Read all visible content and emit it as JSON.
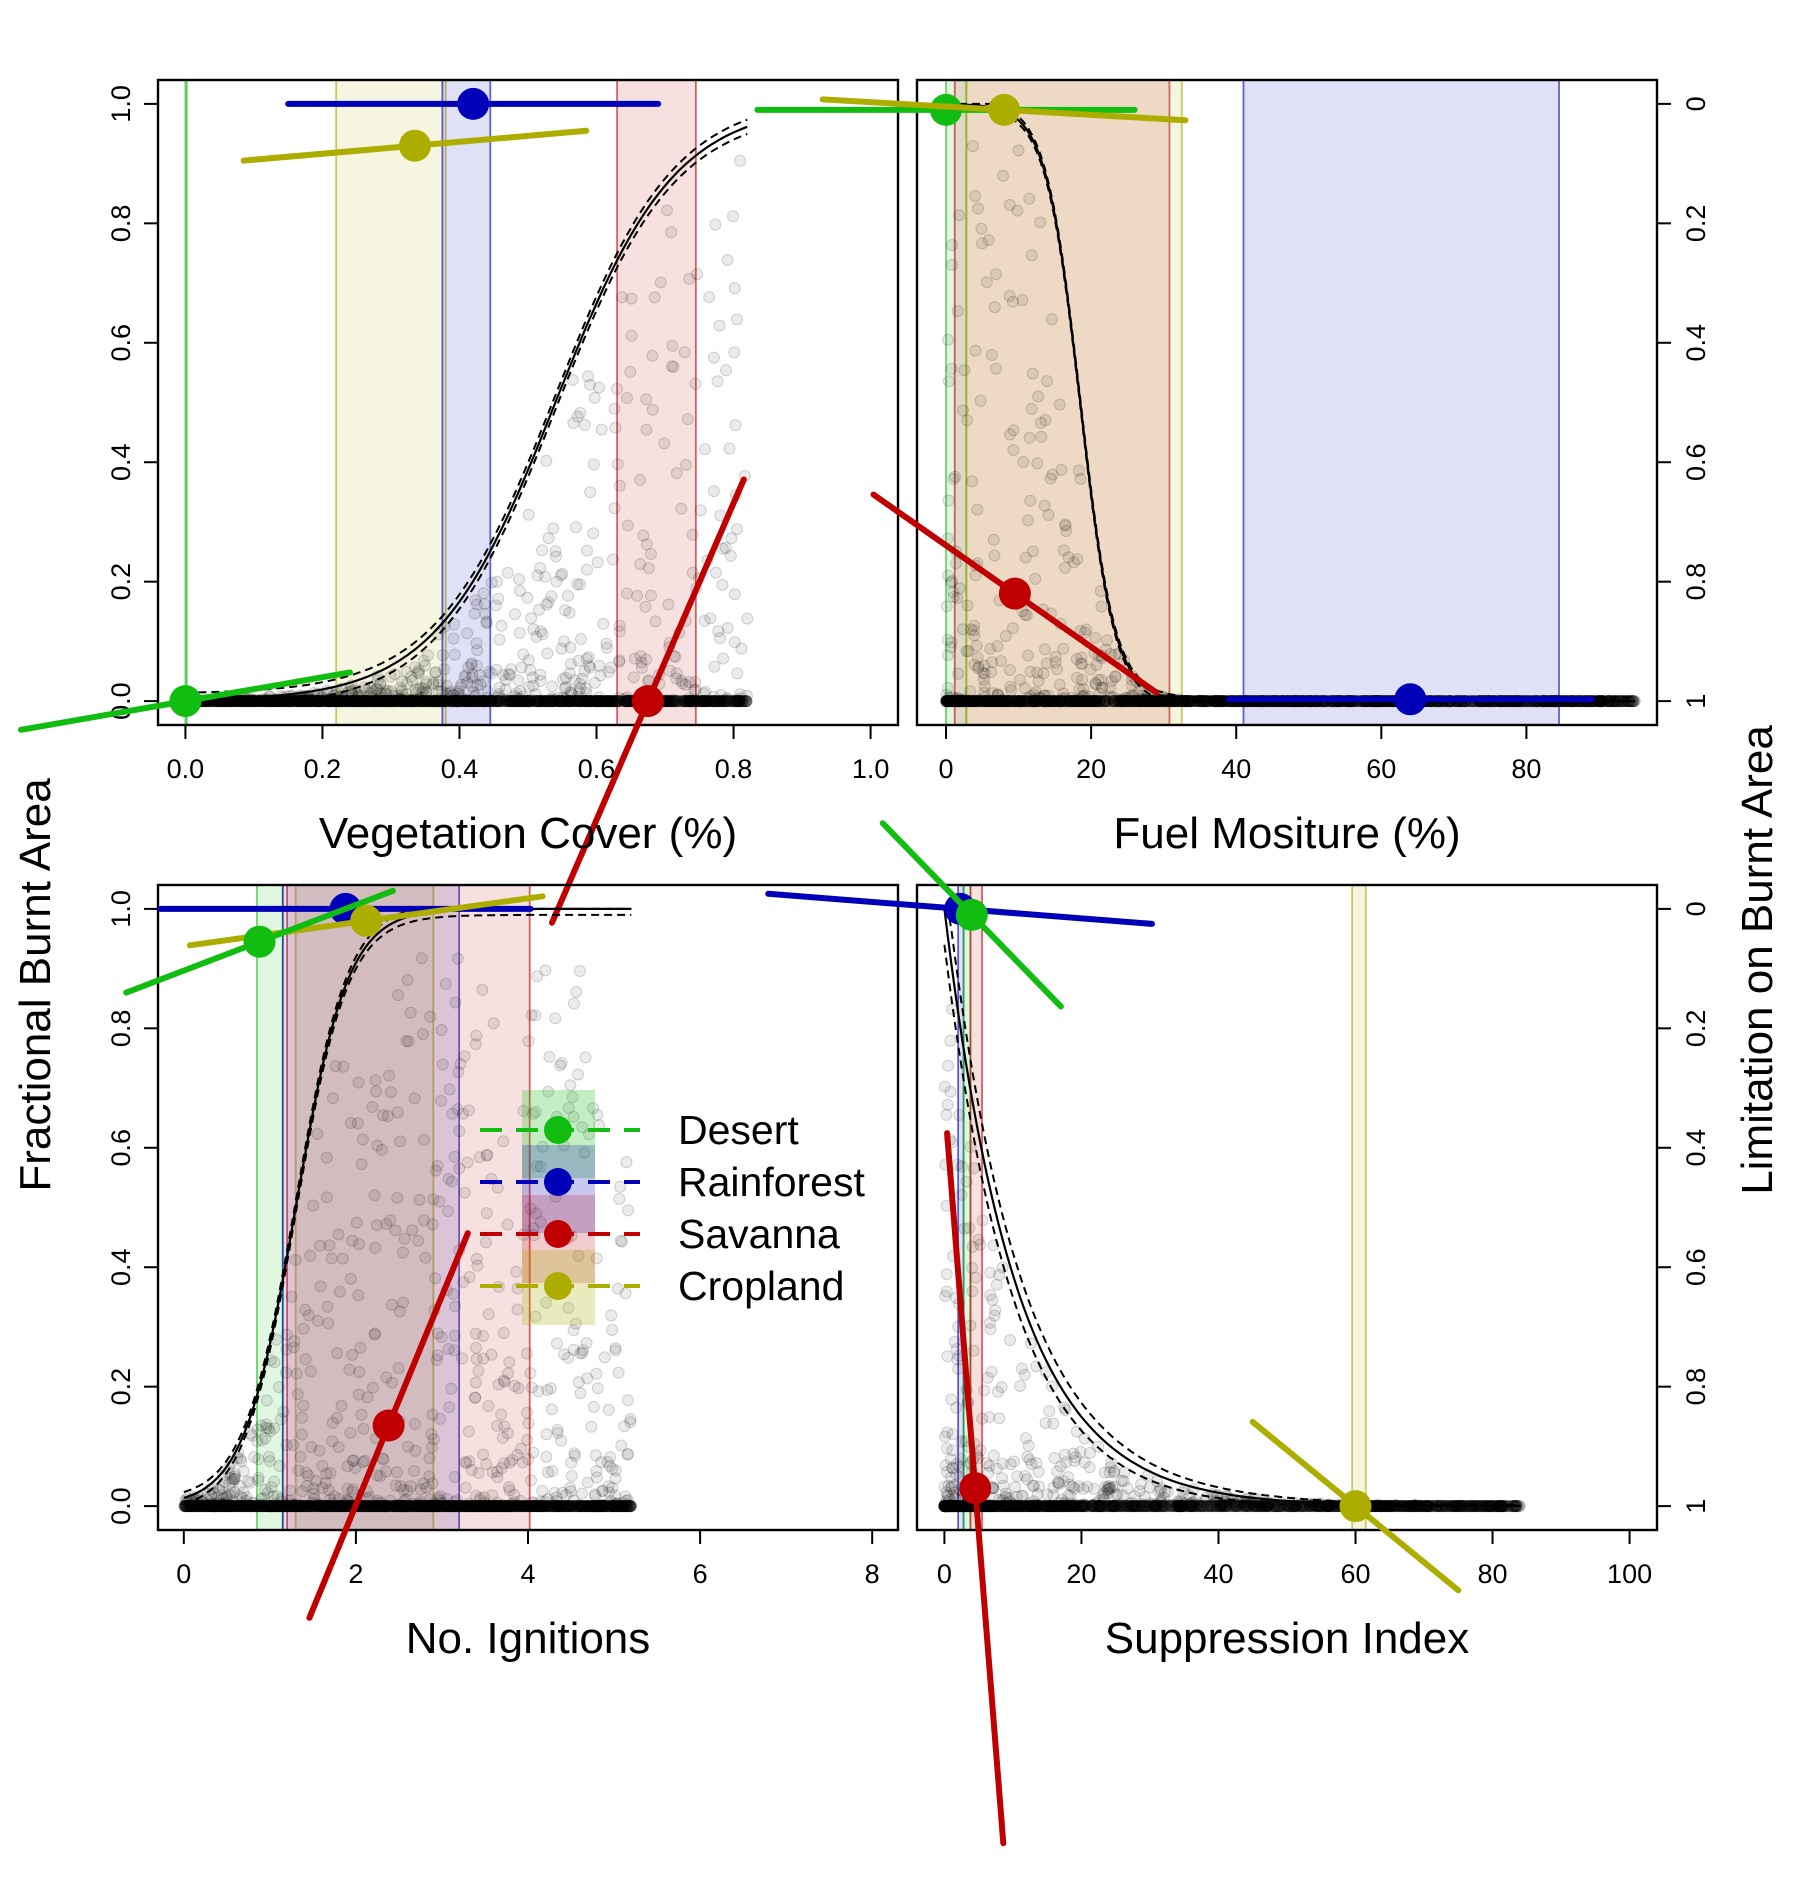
{
  "left_axis_label": "Fractional Burnt Area",
  "right_axis_label": "Limitation on Burnt Area",
  "colors": {
    "Desert": "#10bd10",
    "Rainforest": "#0000b8",
    "Savanna": "#c00000",
    "Cropland": "#adad00",
    "points": "#000000",
    "curve": "#000000"
  },
  "legend": {
    "placement": "center of lower-left panel",
    "entries": [
      "Desert",
      "Rainforest",
      "Savanna",
      "Cropland"
    ]
  },
  "chart_data": [
    {
      "type": "scatter",
      "panel": "top-left",
      "xlabel": "Vegetation Cover (%)",
      "xlim": [
        -0.04,
        1.04
      ],
      "xticks": [
        "0.0",
        "0.2",
        "0.4",
        "0.6",
        "0.8",
        "1.0"
      ],
      "ylim": [
        -0.04,
        1.04
      ],
      "yticks_left": [
        "0.0",
        "0.2",
        "0.4",
        "0.6",
        "0.8",
        "1.0"
      ],
      "yticks_right": [],
      "points_xmax": 0.82,
      "curve": {
        "form": "logistic",
        "x0": 0.54,
        "k": 11.5,
        "max": 1.0,
        "xrange": [
          0.0,
          0.82
        ],
        "band": 0.012
      },
      "ranges": [
        {
          "name": "Desert",
          "lo": 0.0,
          "hi": 0.002
        },
        {
          "name": "Cropland",
          "lo": 0.22,
          "hi": 0.38
        },
        {
          "name": "Rainforest",
          "lo": 0.375,
          "hi": 0.445
        },
        {
          "name": "Savanna",
          "lo": 0.63,
          "hi": 0.745
        }
      ],
      "markers": [
        {
          "name": "Rainforest",
          "x": 0.42,
          "y": 1.0,
          "slope": 0.0,
          "halfwidth": 0.27
        },
        {
          "name": "Cropland",
          "x": 0.335,
          "y": 0.93,
          "slope": 0.1,
          "halfwidth": 0.25
        },
        {
          "name": "Desert",
          "x": 0.0,
          "y": 0.0,
          "slope": 0.2,
          "halfwidth": 0.24
        },
        {
          "name": "Savanna",
          "x": 0.675,
          "y": 0.0,
          "slope": 2.65,
          "halfwidth": 0.14
        }
      ]
    },
    {
      "type": "scatter",
      "panel": "top-right",
      "xlabel": "Fuel Mositure (%)",
      "xlim": [
        -4,
        98
      ],
      "xticks": [
        "0",
        "20",
        "40",
        "60",
        "80"
      ],
      "ylim": [
        -0.04,
        1.04
      ],
      "yticks_left": [],
      "yticks_right": [
        "0",
        "0.2",
        "0.4",
        "0.6",
        "0.8",
        "1"
      ],
      "points_xmax": 95,
      "curve": {
        "form": "reverse-logistic",
        "x0": 18.5,
        "k": 0.42,
        "max": 1.0,
        "xrange": [
          0.0,
          95.0
        ],
        "band": 0.006
      },
      "ranges": [
        {
          "name": "Desert",
          "lo": 0.0,
          "hi": 2.8
        },
        {
          "name": "Savanna",
          "lo": 1.2,
          "hi": 30.8
        },
        {
          "name": "Cropland",
          "lo": 2.8,
          "hi": 32.5
        },
        {
          "name": "Rainforest",
          "lo": 41.0,
          "hi": 84.5
        }
      ],
      "markers": [
        {
          "name": "Desert",
          "x": 0.0,
          "y": 0.99,
          "slope": 0.0,
          "halfwidth": 26.0
        },
        {
          "name": "Cropland",
          "x": 8.0,
          "y": 0.99,
          "slope": -0.0007,
          "halfwidth": 25.0
        },
        {
          "name": "Savanna",
          "x": 9.5,
          "y": 0.18,
          "slope": -0.0085,
          "halfwidth": 19.5
        },
        {
          "name": "Rainforest",
          "x": 64.0,
          "y": 0.003,
          "slope": 0.0,
          "halfwidth": 25.0
        }
      ]
    },
    {
      "type": "scatter",
      "panel": "bottom-left",
      "xlabel": "No. Ignitions",
      "xlim": [
        -0.3,
        8.3
      ],
      "xticks": [
        "0",
        "2",
        "4",
        "6",
        "8"
      ],
      "ylim": [
        -0.04,
        1.04
      ],
      "yticks_left": [
        "0.0",
        "0.2",
        "0.4",
        "0.6",
        "0.8",
        "1.0"
      ],
      "yticks_right": [],
      "points_xmax": 5.2,
      "curve": {
        "form": "logistic",
        "x0": 1.3,
        "k": 3.3,
        "max": 1.0,
        "xrange": [
          0.0,
          5.2
        ],
        "band": 0.01
      },
      "ranges": [
        {
          "name": "Desert",
          "lo": 0.85,
          "hi": 1.15
        },
        {
          "name": "Cropland",
          "lo": 1.3,
          "hi": 2.9
        },
        {
          "name": "Rainforest",
          "lo": 1.15,
          "hi": 3.2
        },
        {
          "name": "Savanna",
          "lo": 1.2,
          "hi": 4.02
        }
      ],
      "markers": [
        {
          "name": "Rainforest",
          "x": 1.88,
          "y": 1.0,
          "slope": 0.0,
          "halfwidth": 2.15
        },
        {
          "name": "Cropland",
          "x": 2.12,
          "y": 0.98,
          "slope": 0.02,
          "halfwidth": 2.05
        },
        {
          "name": "Desert",
          "x": 0.88,
          "y": 0.945,
          "slope": 0.055,
          "halfwidth": 1.55
        },
        {
          "name": "Savanna",
          "x": 2.38,
          "y": 0.135,
          "slope": 0.35,
          "halfwidth": 0.92
        }
      ]
    },
    {
      "type": "scatter",
      "panel": "bottom-right",
      "xlabel": "Suppression Index",
      "xlim": [
        -4,
        104
      ],
      "xticks": [
        "0",
        "20",
        "40",
        "60",
        "80",
        "100"
      ],
      "ylim": [
        -0.04,
        1.04
      ],
      "yticks_left": [],
      "yticks_right": [
        "0",
        "0.2",
        "0.4",
        "0.6",
        "0.8",
        "1"
      ],
      "points_xmax": 84,
      "curve": {
        "form": "exponential-decay",
        "rate": 0.095,
        "max": 1.0,
        "xrange": [
          0.0,
          84.0
        ],
        "band": 0.03
      },
      "ranges": [
        {
          "name": "Rainforest",
          "lo": 2.0,
          "hi": 2.8
        },
        {
          "name": "Desert",
          "lo": 2.8,
          "hi": 3.8
        },
        {
          "name": "Savanna",
          "lo": 3.8,
          "hi": 5.5
        },
        {
          "name": "Cropland",
          "lo": 59.5,
          "hi": 61.5
        }
      ],
      "markers": [
        {
          "name": "Rainforest",
          "x": 2.3,
          "y": 1.0,
          "slope": -0.0009,
          "halfwidth": 28.0
        },
        {
          "name": "Desert",
          "x": 4.0,
          "y": 0.99,
          "slope": -0.0118,
          "halfwidth": 13.0
        },
        {
          "name": "Savanna",
          "x": 4.5,
          "y": 0.03,
          "slope": -0.145,
          "halfwidth": 4.1
        },
        {
          "name": "Cropland",
          "x": 60.0,
          "y": 0.0,
          "slope": -0.0094,
          "halfwidth": 15.0
        }
      ]
    }
  ]
}
